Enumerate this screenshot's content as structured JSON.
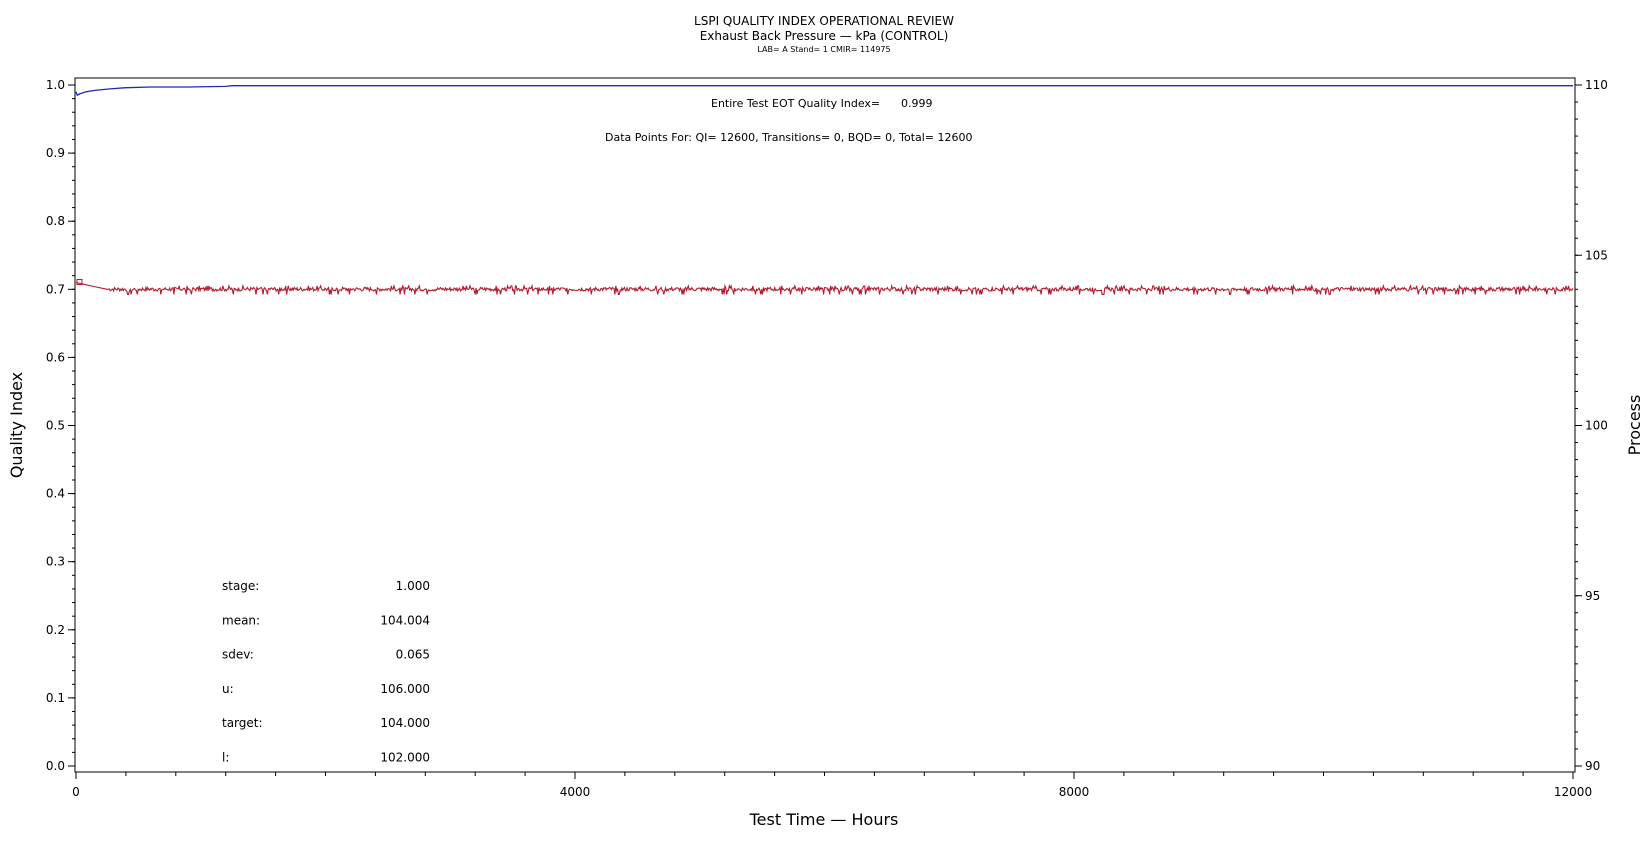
{
  "chart_data": {
    "type": "line",
    "title": "LSPI QUALITY INDEX OPERATIONAL REVIEW",
    "subtitle": "Exhaust Back Pressure — kPa (CONTROL)",
    "subtitle2": "LAB= A Stand= 1 CMIR= 114975",
    "xlabel": "Test Time — Hours",
    "ylabel": "Quality Index",
    "y2label": "Process",
    "xlim": [
      0,
      12000
    ],
    "ylim": [
      0,
      1
    ],
    "y2lim": [
      90,
      110
    ],
    "x_ticks": [
      "0",
      "4000",
      "8000",
      "12000"
    ],
    "y_ticks": [
      "0.0",
      "0.1",
      "0.2",
      "0.3",
      "0.4",
      "0.5",
      "0.6",
      "0.7",
      "0.8",
      "0.9",
      "1.0"
    ],
    "y2_ticks": [
      "90",
      "95",
      "100",
      "105",
      "110"
    ],
    "annotations": {
      "eot_label": "Entire Test EOT Quality Index=",
      "eot_value": "0.999",
      "points_line": "Data Points For: QI= 12600, Transitions=     0, BQD=     0, Total= 12600"
    },
    "stats": [
      {
        "label": "stage:",
        "value": "1.000"
      },
      {
        "label": "mean:",
        "value": "104.004"
      },
      {
        "label": "sdev:",
        "value": "0.065"
      },
      {
        "label": "u:",
        "value": "106.000"
      },
      {
        "label": "target:",
        "value": "104.000"
      },
      {
        "label": "l:",
        "value": "102.000"
      }
    ],
    "series": [
      {
        "color": "#1f2bb5",
        "axis": "left",
        "points": [
          [
            0,
            0.99
          ],
          [
            10,
            0.985
          ],
          [
            30,
            0.987
          ],
          [
            80,
            0.99
          ],
          [
            150,
            0.992
          ],
          [
            250,
            0.994
          ],
          [
            400,
            0.996
          ],
          [
            600,
            0.997
          ],
          [
            900,
            0.997
          ],
          [
            1200,
            0.998
          ],
          [
            1250,
            0.999
          ],
          [
            2000,
            0.999
          ],
          [
            4000,
            0.999
          ],
          [
            8000,
            0.999
          ],
          [
            12000,
            0.999
          ]
        ]
      },
      {
        "color": "#b01c2e",
        "axis": "right",
        "mean": 104.004,
        "band": [
          103.85,
          104.1
        ],
        "points": [
          [
            0,
            104.2
          ],
          [
            60,
            104.15
          ],
          [
            120,
            104.1
          ],
          [
            250,
            104.0
          ],
          [
            12000,
            104.0
          ]
        ]
      }
    ]
  }
}
